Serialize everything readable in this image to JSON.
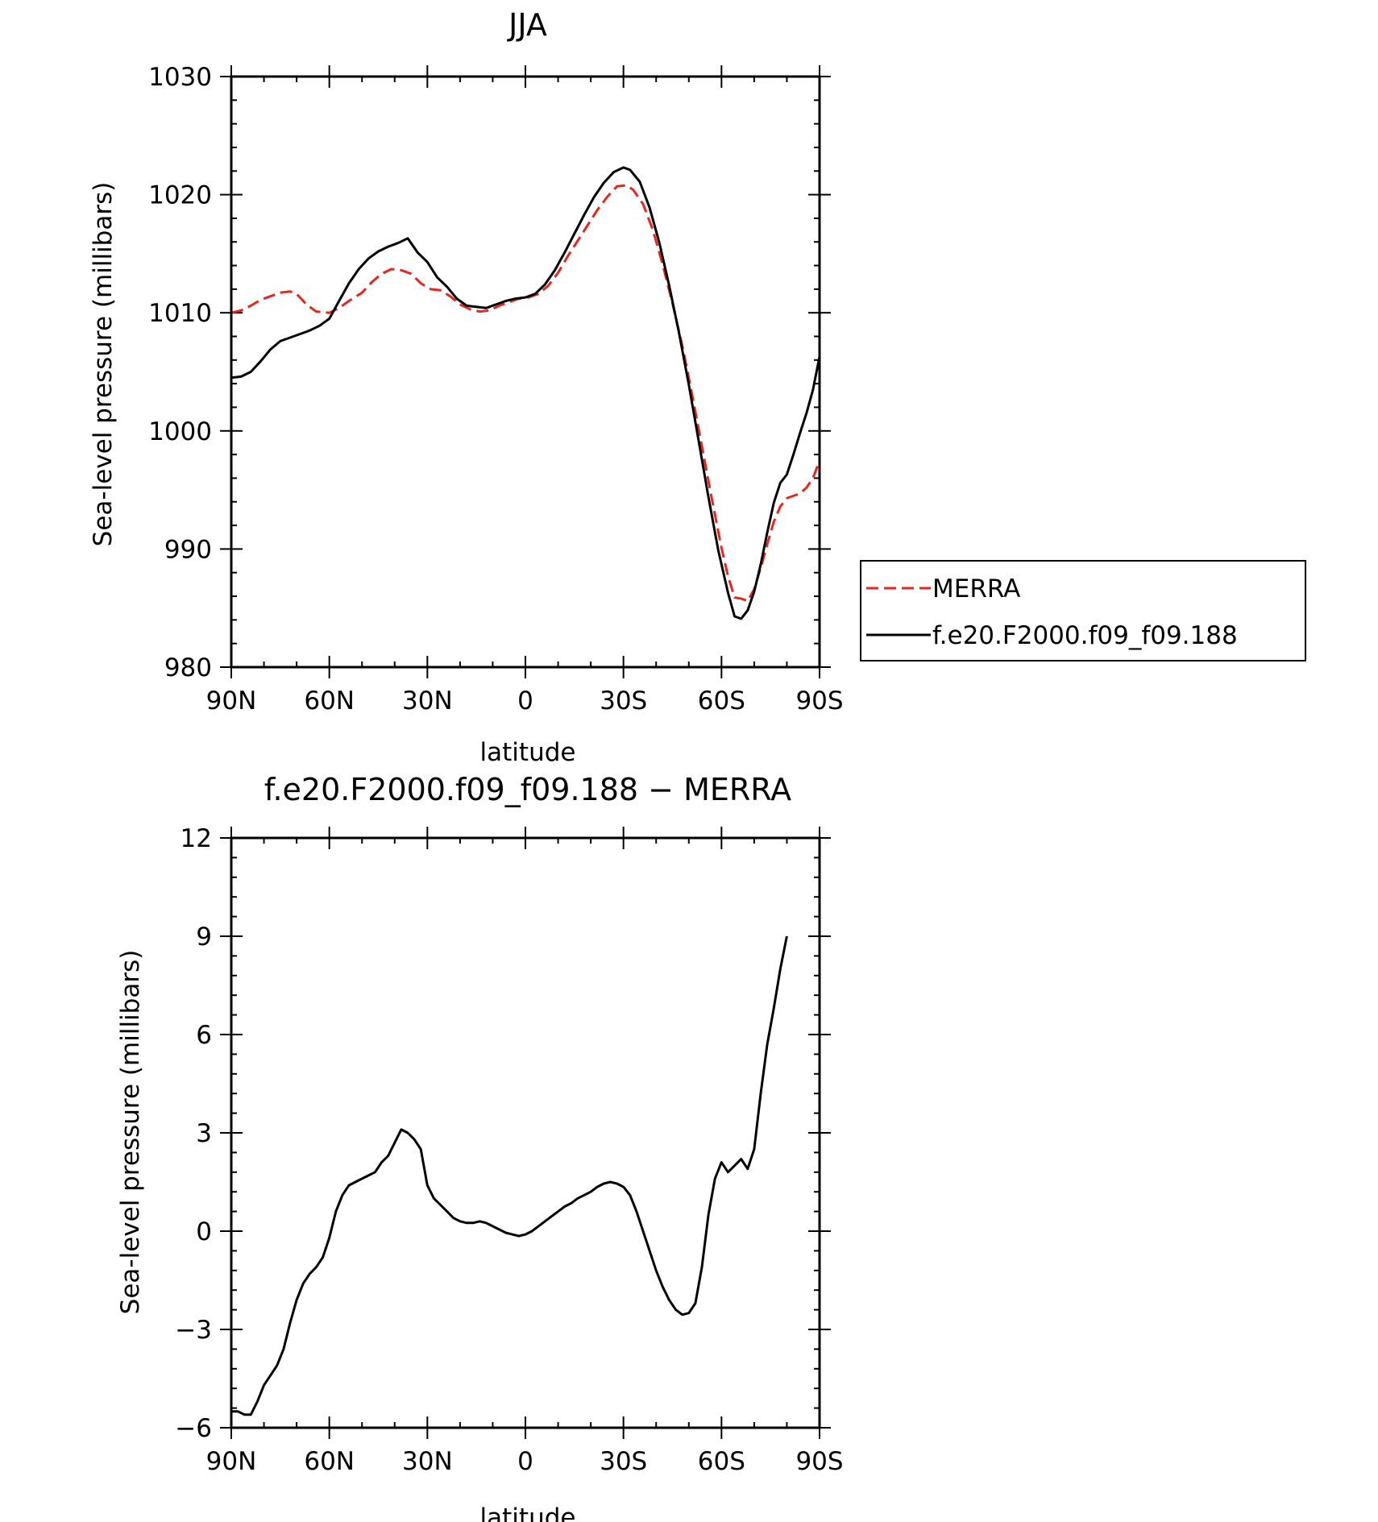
{
  "chart_data": [
    {
      "type": "line",
      "title": "JJA",
      "xlabel": "latitude",
      "ylabel": "Sea-level pressure (millibars)",
      "xlim": [
        90,
        -90
      ],
      "ylim": [
        980,
        1030
      ],
      "xticks": [
        90,
        60,
        30,
        0,
        -30,
        -60,
        -90
      ],
      "xtick_labels": [
        "90N",
        "60N",
        "30N",
        "0",
        "30S",
        "60S",
        "90S"
      ],
      "yticks": [
        980,
        990,
        1000,
        1010,
        1020,
        1030
      ],
      "ytick_labels": [
        "980",
        "990",
        "1000",
        "1010",
        "1020",
        "1030"
      ],
      "grid": false,
      "legend_position": "right, outside plot",
      "series": [
        {
          "name": "MERRA",
          "color": "#e8261f",
          "dash": "dashed",
          "points": [
            [
              90,
              1010.0
            ],
            [
              87,
              1010.2
            ],
            [
              84,
              1010.6
            ],
            [
              81,
              1011.1
            ],
            [
              78,
              1011.4
            ],
            [
              75,
              1011.7
            ],
            [
              72,
              1011.8
            ],
            [
              70,
              1011.6
            ],
            [
              67,
              1010.7
            ],
            [
              64,
              1010.1
            ],
            [
              60,
              1010.0
            ],
            [
              57,
              1010.4
            ],
            [
              54,
              1011.0
            ],
            [
              50,
              1011.7
            ],
            [
              47,
              1012.6
            ],
            [
              44,
              1013.3
            ],
            [
              41,
              1013.7
            ],
            [
              38,
              1013.6
            ],
            [
              35,
              1013.3
            ],
            [
              32,
              1012.5
            ],
            [
              29,
              1012.0
            ],
            [
              26,
              1011.9
            ],
            [
              23,
              1011.4
            ],
            [
              20,
              1010.7
            ],
            [
              17,
              1010.3
            ],
            [
              14,
              1010.1
            ],
            [
              11,
              1010.2
            ],
            [
              8,
              1010.6
            ],
            [
              5,
              1010.9
            ],
            [
              2,
              1011.2
            ],
            [
              -1,
              1011.3
            ],
            [
              -4,
              1011.6
            ],
            [
              -7,
              1012.3
            ],
            [
              -10,
              1013.4
            ],
            [
              -13,
              1014.8
            ],
            [
              -16,
              1016.1
            ],
            [
              -19,
              1017.4
            ],
            [
              -22,
              1018.7
            ],
            [
              -25,
              1019.8
            ],
            [
              -28,
              1020.7
            ],
            [
              -31,
              1020.8
            ],
            [
              -33,
              1020.4
            ],
            [
              -36,
              1019.2
            ],
            [
              -39,
              1017.0
            ],
            [
              -42,
              1014.1
            ],
            [
              -45,
              1010.8
            ],
            [
              -48,
              1007.2
            ],
            [
              -51,
              1003.1
            ],
            [
              -54,
              998.7
            ],
            [
              -57,
              994.3
            ],
            [
              -60,
              990.1
            ],
            [
              -62,
              987.7
            ],
            [
              -64,
              985.9
            ],
            [
              -66,
              985.8
            ],
            [
              -68,
              985.6
            ],
            [
              -70,
              986.6
            ],
            [
              -72,
              988.4
            ],
            [
              -74,
              990.4
            ],
            [
              -76,
              992.3
            ],
            [
              -78,
              993.6
            ],
            [
              -80,
              994.3
            ],
            [
              -82,
              994.5
            ],
            [
              -84,
              994.7
            ],
            [
              -86,
              995.2
            ],
            [
              -88,
              996.0
            ],
            [
              -90,
              997.5
            ]
          ]
        },
        {
          "name": "f.e20.F2000.f09_f09.188",
          "color": "#000000",
          "dash": "solid",
          "points": [
            [
              90,
              1004.5
            ],
            [
              87,
              1004.6
            ],
            [
              84,
              1005.0
            ],
            [
              81,
              1005.9
            ],
            [
              78,
              1006.9
            ],
            [
              75,
              1007.6
            ],
            [
              72,
              1007.9
            ],
            [
              69,
              1008.2
            ],
            [
              66,
              1008.5
            ],
            [
              63,
              1008.9
            ],
            [
              60,
              1009.5
            ],
            [
              57,
              1011.0
            ],
            [
              54,
              1012.5
            ],
            [
              51,
              1013.7
            ],
            [
              48,
              1014.6
            ],
            [
              45,
              1015.2
            ],
            [
              42,
              1015.6
            ],
            [
              39,
              1015.9
            ],
            [
              36,
              1016.3
            ],
            [
              33,
              1015.1
            ],
            [
              30,
              1014.3
            ],
            [
              27,
              1013.0
            ],
            [
              24,
              1012.2
            ],
            [
              21,
              1011.2
            ],
            [
              18,
              1010.6
            ],
            [
              15,
              1010.5
            ],
            [
              12,
              1010.4
            ],
            [
              9,
              1010.7
            ],
            [
              6,
              1011.0
            ],
            [
              3,
              1011.2
            ],
            [
              0,
              1011.3
            ],
            [
              -3,
              1011.6
            ],
            [
              -6,
              1012.4
            ],
            [
              -9,
              1013.6
            ],
            [
              -12,
              1015.1
            ],
            [
              -15,
              1016.7
            ],
            [
              -18,
              1018.3
            ],
            [
              -21,
              1019.8
            ],
            [
              -24,
              1021.0
            ],
            [
              -27,
              1021.9
            ],
            [
              -30,
              1022.3
            ],
            [
              -32,
              1022.1
            ],
            [
              -35,
              1021.1
            ],
            [
              -38,
              1018.9
            ],
            [
              -41,
              1015.9
            ],
            [
              -44,
              1012.3
            ],
            [
              -47,
              1008.3
            ],
            [
              -50,
              1003.9
            ],
            [
              -53,
              999.2
            ],
            [
              -56,
              994.4
            ],
            [
              -59,
              989.9
            ],
            [
              -62,
              986.3
            ],
            [
              -64,
              984.3
            ],
            [
              -66,
              984.1
            ],
            [
              -68,
              984.8
            ],
            [
              -70,
              986.4
            ],
            [
              -72,
              988.7
            ],
            [
              -74,
              991.4
            ],
            [
              -76,
              993.9
            ],
            [
              -78,
              995.6
            ],
            [
              -80,
              996.3
            ],
            [
              -82,
              998.0
            ],
            [
              -84,
              999.8
            ],
            [
              -86,
              1001.5
            ],
            [
              -88,
              1003.5
            ],
            [
              -90,
              1006.3
            ]
          ]
        }
      ]
    },
    {
      "type": "line",
      "title": "f.e20.F2000.f09_f09.188 - MERRA",
      "xlabel": "latitude",
      "ylabel": "Sea-level pressure (millibars)",
      "xlim": [
        90,
        -90
      ],
      "ylim": [
        -6,
        12
      ],
      "xticks": [
        90,
        60,
        30,
        0,
        -30,
        -60,
        -90
      ],
      "xtick_labels": [
        "90N",
        "60N",
        "30N",
        "0",
        "30S",
        "60S",
        "90S"
      ],
      "yticks": [
        -6,
        -3,
        0,
        3,
        6,
        9,
        12
      ],
      "ytick_labels": [
        "-6",
        "-3",
        "0",
        "3",
        "6",
        "9",
        "12"
      ],
      "grid": false,
      "series": [
        {
          "color": "#000000",
          "dash": "solid",
          "points": [
            [
              90,
              -5.5
            ],
            [
              88,
              -5.5
            ],
            [
              86,
              -5.6
            ],
            [
              84,
              -5.6
            ],
            [
              82,
              -5.2
            ],
            [
              80,
              -4.7
            ],
            [
              78,
              -4.4
            ],
            [
              76,
              -4.1
            ],
            [
              74,
              -3.6
            ],
            [
              72,
              -2.8
            ],
            [
              70,
              -2.1
            ],
            [
              68,
              -1.6
            ],
            [
              66,
              -1.3
            ],
            [
              64,
              -1.1
            ],
            [
              62,
              -0.8
            ],
            [
              60,
              -0.2
            ],
            [
              58,
              0.6
            ],
            [
              56,
              1.1
            ],
            [
              54,
              1.4
            ],
            [
              52,
              1.5
            ],
            [
              50,
              1.6
            ],
            [
              48,
              1.7
            ],
            [
              46,
              1.8
            ],
            [
              44,
              2.1
            ],
            [
              42,
              2.3
            ],
            [
              40,
              2.7
            ],
            [
              38,
              3.1
            ],
            [
              36,
              3.0
            ],
            [
              34,
              2.8
            ],
            [
              32,
              2.5
            ],
            [
              30,
              1.4
            ],
            [
              28,
              1.0
            ],
            [
              26,
              0.8
            ],
            [
              24,
              0.6
            ],
            [
              22,
              0.4
            ],
            [
              20,
              0.3
            ],
            [
              18,
              0.25
            ],
            [
              16,
              0.25
            ],
            [
              14,
              0.3
            ],
            [
              12,
              0.25
            ],
            [
              10,
              0.15
            ],
            [
              8,
              0.05
            ],
            [
              6,
              -0.05
            ],
            [
              4,
              -0.1
            ],
            [
              2,
              -0.15
            ],
            [
              0,
              -0.1
            ],
            [
              -2,
              0.0
            ],
            [
              -4,
              0.15
            ],
            [
              -6,
              0.3
            ],
            [
              -8,
              0.45
            ],
            [
              -10,
              0.6
            ],
            [
              -12,
              0.75
            ],
            [
              -14,
              0.85
            ],
            [
              -16,
              1.0
            ],
            [
              -18,
              1.1
            ],
            [
              -20,
              1.2
            ],
            [
              -22,
              1.35
            ],
            [
              -24,
              1.45
            ],
            [
              -26,
              1.5
            ],
            [
              -28,
              1.45
            ],
            [
              -30,
              1.35
            ],
            [
              -32,
              1.1
            ],
            [
              -34,
              0.6
            ],
            [
              -36,
              0.0
            ],
            [
              -38,
              -0.6
            ],
            [
              -40,
              -1.2
            ],
            [
              -42,
              -1.7
            ],
            [
              -44,
              -2.1
            ],
            [
              -46,
              -2.4
            ],
            [
              -48,
              -2.55
            ],
            [
              -50,
              -2.5
            ],
            [
              -52,
              -2.2
            ],
            [
              -54,
              -1.1
            ],
            [
              -56,
              0.5
            ],
            [
              -58,
              1.6
            ],
            [
              -60,
              2.1
            ],
            [
              -62,
              1.8
            ],
            [
              -64,
              2.0
            ],
            [
              -66,
              2.2
            ],
            [
              -68,
              1.9
            ],
            [
              -70,
              2.5
            ],
            [
              -72,
              4.2
            ],
            [
              -74,
              5.7
            ],
            [
              -76,
              6.8
            ],
            [
              -78,
              8.0
            ],
            [
              -80,
              9.0
            ]
          ]
        }
      ]
    }
  ]
}
